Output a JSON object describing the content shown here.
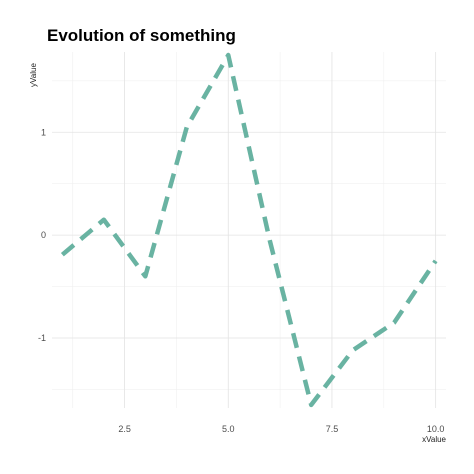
{
  "chart_data": {
    "type": "line",
    "title": "Evolution of something",
    "xlabel": "xValue",
    "ylabel": "yValue",
    "xlim": [
      0.75,
      10.25
    ],
    "ylim": [
      -1.68,
      1.78
    ],
    "x_ticks": [
      2.5,
      5.0,
      7.5,
      10.0
    ],
    "x_tick_labels": [
      "2.5",
      "5.0",
      "7.5",
      "10.0"
    ],
    "y_ticks": [
      -1,
      0,
      1
    ],
    "y_tick_labels": [
      "-1",
      "0",
      "1"
    ],
    "grid": true,
    "series": [
      {
        "color": "#69b3a2",
        "line_style": "dashed",
        "x": [
          1,
          2,
          3,
          4,
          5,
          6,
          7,
          8,
          9,
          10
        ],
        "y": [
          -0.19,
          0.15,
          -0.4,
          1.05,
          1.75,
          -0.05,
          -1.65,
          -1.12,
          -0.85,
          -0.25
        ]
      }
    ]
  }
}
